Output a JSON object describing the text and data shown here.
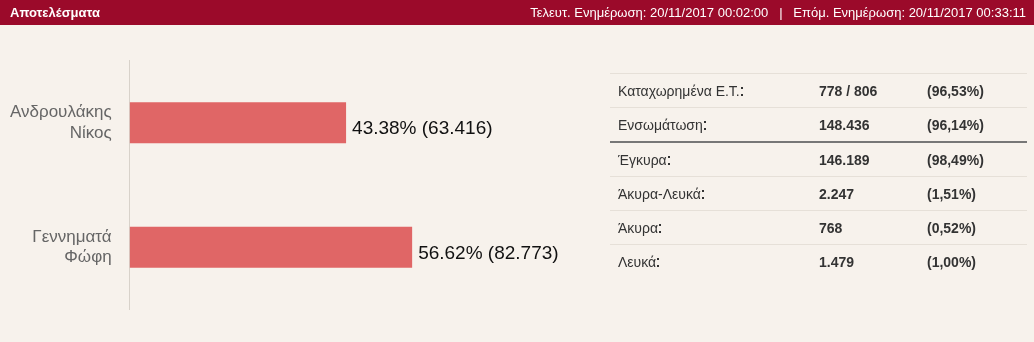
{
  "chart_data": [
    {
      "type": "other",
      "title": "Αποτελέσματα",
      "subtitle": "Τελευτ. Ενημέρωση: 20/11/2017 00:02:00   |   Επόμ. Ενημέρωση: 20/11/2017 00:33:11"
    },
    {
      "type": "bar",
      "orientation": "horizontal",
      "categories": [
        "Ανδρουλάκης Νίκος",
        "Γεννηματά Φώφη"
      ],
      "values": [
        43.38,
        56.62
      ],
      "value_labels": [
        "43.38% (63.416)",
        "56.62% (82.773)"
      ],
      "color": "#e06666",
      "legend": false,
      "tick_labels": "y"
    },
    {
      "type": "other",
      "categories": [
        "Καταχωρημένα Ε.Τ.",
        "Ενσωμάτωση",
        "Έγκυρα",
        "Άκυρα-Λευκά",
        "Άκυρα",
        "Λευκά"
      ],
      "cell_labels": [
        [
          "778 / 806",
          "(96,53%)"
        ],
        [
          "148.436",
          "(96,14%)"
        ],
        [
          "146.189",
          "(98,49%)"
        ],
        [
          "2.247",
          "(1,51%)"
        ],
        [
          "768",
          "(0,52%)"
        ],
        [
          "1.479",
          "(1,00%)"
        ]
      ]
    }
  ]
}
